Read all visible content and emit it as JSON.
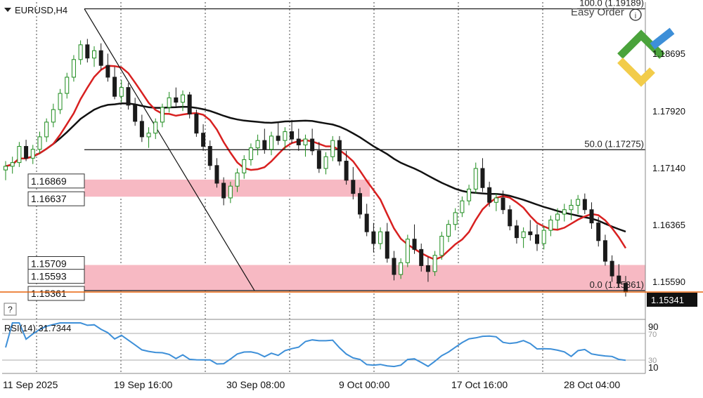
{
  "window": {
    "title": "EURUSD,H4"
  },
  "watermark": "Easy Order",
  "help_button": "?",
  "colors": {
    "bull": "#1d8c1d",
    "bear": "#1a1a1a",
    "ma_fast": "#d82020",
    "ma_slow": "#111111",
    "zone": "#f7b9c3",
    "rsi_line": "#3d8fd8",
    "price_badge": "#111111",
    "price_line": "#e8620a",
    "logo_green": "#4aa33b",
    "logo_yellow": "#f2cc4a",
    "logo_blue": "#3d8fd8"
  },
  "price_axis": {
    "ticks": [
      "1.18695",
      "1.17920",
      "1.17140",
      "1.16365",
      "1.15590"
    ],
    "current_price": "1.15341"
  },
  "time_axis": {
    "labels": [
      "11 Sep 2025",
      "19 Sep 16:00",
      "30 Sep 08:00",
      "9 Oct 00:00",
      "17 Oct 16:00",
      "28 Oct 04:00"
    ]
  },
  "fibonacci": {
    "levels": [
      {
        "label": "100.0 (1.19189)",
        "price": 1.19189
      },
      {
        "label": "50.0 (1.17275)",
        "price": 1.17275
      },
      {
        "label": "0.0 (1.15361)",
        "price": 1.15361
      }
    ]
  },
  "zones": [
    {
      "top_label": "1.16869",
      "bottom_label": "1.16637",
      "top": 1.16869,
      "bottom": 1.16637
    },
    {
      "top_label": "1.15709",
      "mid_label": "1.15593",
      "bottom_label": "1.15361",
      "top": 1.15709,
      "bottom": 1.15361
    }
  ],
  "rsi": {
    "title": "RSI(14) 31.7344",
    "levels": [
      "70",
      "30"
    ],
    "bounds": [
      "90",
      "10"
    ]
  },
  "chart_data": {
    "type": "candlestick",
    "symbol": "EURUSD",
    "timeframe": "H4",
    "ylim": [
      1.1497,
      1.1928
    ],
    "series": [
      {
        "points": [
          [
            1.17,
            1.1712,
            1.1686,
            1.1705
          ],
          [
            1.1705,
            1.1718,
            1.1695,
            1.171
          ],
          [
            1.171,
            1.1738,
            1.1704,
            1.1732
          ],
          [
            1.1732,
            1.1741,
            1.1712,
            1.1716
          ],
          [
            1.1716,
            1.1734,
            1.1708,
            1.1728
          ],
          [
            1.1728,
            1.1752,
            1.1722,
            1.1745
          ],
          [
            1.1745,
            1.177,
            1.1738,
            1.1765
          ],
          [
            1.1765,
            1.179,
            1.1758,
            1.1782
          ],
          [
            1.1782,
            1.181,
            1.1776,
            1.1804
          ],
          [
            1.1804,
            1.1832,
            1.1797,
            1.1826
          ],
          [
            1.1826,
            1.1856,
            1.182,
            1.185
          ],
          [
            1.185,
            1.1876,
            1.1843,
            1.187
          ],
          [
            1.187,
            1.1878,
            1.1846,
            1.1852
          ],
          [
            1.1852,
            1.1868,
            1.184,
            1.1862
          ],
          [
            1.1862,
            1.1872,
            1.1836,
            1.1842
          ],
          [
            1.1842,
            1.1858,
            1.182,
            1.1826
          ],
          [
            1.1826,
            1.184,
            1.1796,
            1.18
          ],
          [
            1.18,
            1.1822,
            1.1792,
            1.1812
          ],
          [
            1.1812,
            1.1818,
            1.1782,
            1.1788
          ],
          [
            1.1788,
            1.1798,
            1.176,
            1.1766
          ],
          [
            1.1766,
            1.1775,
            1.1738,
            1.1745
          ],
          [
            1.1745,
            1.1758,
            1.173,
            1.175
          ],
          [
            1.175,
            1.177,
            1.1742,
            1.1765
          ],
          [
            1.1765,
            1.179,
            1.1758,
            1.1785
          ],
          [
            1.1785,
            1.1806,
            1.1778,
            1.1798
          ],
          [
            1.1798,
            1.1812,
            1.1786,
            1.1792
          ],
          [
            1.1792,
            1.1808,
            1.178,
            1.1802
          ],
          [
            1.1802,
            1.1806,
            1.177,
            1.1776
          ],
          [
            1.1776,
            1.1782,
            1.1745,
            1.175
          ],
          [
            1.175,
            1.1762,
            1.1726,
            1.1732
          ],
          [
            1.1732,
            1.174,
            1.17,
            1.1706
          ],
          [
            1.1706,
            1.1716,
            1.1676,
            1.1682
          ],
          [
            1.1682,
            1.169,
            1.1652,
            1.1662
          ],
          [
            1.1662,
            1.1684,
            1.1655,
            1.1678
          ],
          [
            1.1678,
            1.1702,
            1.167,
            1.1696
          ],
          [
            1.1696,
            1.172,
            1.1688,
            1.1714
          ],
          [
            1.1714,
            1.1736,
            1.1706,
            1.173
          ],
          [
            1.173,
            1.1748,
            1.172,
            1.174
          ],
          [
            1.174,
            1.1756,
            1.1722,
            1.1728
          ],
          [
            1.1728,
            1.1752,
            1.172,
            1.1746
          ],
          [
            1.1746,
            1.1765,
            1.1734,
            1.174
          ],
          [
            1.174,
            1.1758,
            1.1728,
            1.1752
          ],
          [
            1.1752,
            1.1768,
            1.1736,
            1.1742
          ],
          [
            1.1742,
            1.1756,
            1.1726,
            1.1734
          ],
          [
            1.1734,
            1.1748,
            1.1718,
            1.1742
          ],
          [
            1.1742,
            1.1756,
            1.172,
            1.1726
          ],
          [
            1.1726,
            1.1738,
            1.1696,
            1.1702
          ],
          [
            1.1702,
            1.1724,
            1.1694,
            1.1718
          ],
          [
            1.1718,
            1.1746,
            1.1712,
            1.174
          ],
          [
            1.174,
            1.1746,
            1.1706,
            1.1712
          ],
          [
            1.1712,
            1.1726,
            1.168,
            1.1686
          ],
          [
            1.1686,
            1.1704,
            1.166,
            1.1668
          ],
          [
            1.1668,
            1.1676,
            1.1634,
            1.164
          ],
          [
            1.164,
            1.1654,
            1.161,
            1.1616
          ],
          [
            1.1616,
            1.1628,
            1.1588,
            1.16
          ],
          [
            1.16,
            1.1622,
            1.1592,
            1.1616
          ],
          [
            1.1616,
            1.1628,
            1.1574,
            1.158
          ],
          [
            1.158,
            1.159,
            1.155,
            1.1558
          ],
          [
            1.1558,
            1.158,
            1.1552,
            1.1574
          ],
          [
            1.1574,
            1.1612,
            1.1568,
            1.1606
          ],
          [
            1.1606,
            1.1626,
            1.1586,
            1.1592
          ],
          [
            1.1592,
            1.16,
            1.1562,
            1.157
          ],
          [
            1.157,
            1.1582,
            1.1548,
            1.1562
          ],
          [
            1.1562,
            1.159,
            1.1556,
            1.1584
          ],
          [
            1.1584,
            1.1616,
            1.1578,
            1.161
          ],
          [
            1.161,
            1.1632,
            1.1602,
            1.1626
          ],
          [
            1.1626,
            1.1648,
            1.1618,
            1.1642
          ],
          [
            1.1642,
            1.1664,
            1.1636,
            1.1658
          ],
          [
            1.1658,
            1.168,
            1.1652,
            1.1674
          ],
          [
            1.1674,
            1.171,
            1.1668,
            1.1702
          ],
          [
            1.1702,
            1.1716,
            1.167,
            1.1676
          ],
          [
            1.1676,
            1.1684,
            1.165,
            1.1656
          ],
          [
            1.1656,
            1.1668,
            1.1644,
            1.1662
          ],
          [
            1.1662,
            1.1672,
            1.164,
            1.1646
          ],
          [
            1.1646,
            1.1652,
            1.1618,
            1.1624
          ],
          [
            1.1624,
            1.1632,
            1.16,
            1.1608
          ],
          [
            1.1608,
            1.1622,
            1.1594,
            1.1616
          ],
          [
            1.1616,
            1.1632,
            1.1604,
            1.1612
          ],
          [
            1.1612,
            1.1626,
            1.159,
            1.16
          ],
          [
            1.16,
            1.1624,
            1.1592,
            1.1618
          ],
          [
            1.1618,
            1.1638,
            1.161,
            1.1632
          ],
          [
            1.1632,
            1.1648,
            1.162,
            1.164
          ],
          [
            1.164,
            1.1654,
            1.163,
            1.1646
          ],
          [
            1.1646,
            1.166,
            1.1632,
            1.1652
          ],
          [
            1.1652,
            1.1666,
            1.164,
            1.166
          ],
          [
            1.166,
            1.1668,
            1.164,
            1.1646
          ],
          [
            1.1646,
            1.1656,
            1.162,
            1.1628
          ],
          [
            1.1628,
            1.1636,
            1.1596,
            1.1604
          ],
          [
            1.1604,
            1.1612,
            1.157,
            1.1576
          ],
          [
            1.1576,
            1.1584,
            1.1548,
            1.1556
          ],
          [
            1.1556,
            1.1572,
            1.154,
            1.1546
          ],
          [
            1.1546,
            1.1556,
            1.1528,
            1.1534
          ]
        ]
      }
    ]
  }
}
